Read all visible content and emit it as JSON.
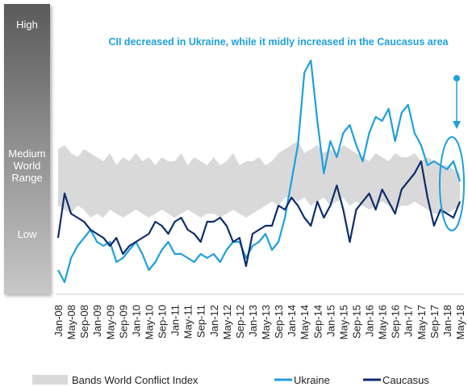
{
  "chart_data": {
    "type": "line",
    "annotation": "CII decreased in Ukraine, while it midly increased in the Caucasus area",
    "scale_labels": [
      "High",
      "Medium World Range",
      "Low"
    ],
    "categories": [
      "Jan-08",
      null,
      "May-08",
      null,
      "Sep-08",
      null,
      "Jan-09",
      null,
      "May-09",
      null,
      "Sep-09",
      null,
      "Jan-10",
      null,
      "May-10",
      null,
      "Sep-10",
      null,
      "Jan-11",
      null,
      "May-11",
      null,
      "Sep-11",
      null,
      "Jan-12",
      null,
      "May-12",
      null,
      "Sep-12",
      null,
      "Jan-13",
      null,
      "May-13",
      null,
      "Sep-13",
      null,
      "Jan-14",
      null,
      "May-14",
      null,
      "Sep-14",
      null,
      "Jan-15",
      null,
      "May-15",
      null,
      "Sep-15",
      null,
      "Jan-16",
      null,
      "May-16",
      null,
      "Sep-16",
      null,
      "Jan-17",
      null,
      "May-17",
      null,
      "Sep-17",
      null,
      "Jan-18",
      null,
      "May-18"
    ],
    "band": {
      "name": "Bands World Conflict Index",
      "color": "#d9d9d9",
      "upper": [
        180,
        185,
        175,
        170,
        180,
        175,
        170,
        165,
        175,
        160,
        170,
        165,
        175,
        165,
        170,
        160,
        170,
        165,
        165,
        175,
        160,
        170,
        165,
        160,
        170,
        160,
        165,
        175,
        160,
        165,
        165,
        170,
        160,
        165,
        175,
        180,
        185,
        190,
        175,
        180,
        185,
        175,
        180,
        175,
        185,
        180,
        175,
        170,
        165,
        175,
        170,
        165,
        175,
        170,
        170,
        175,
        165,
        170,
        165,
        160,
        160,
        155,
        150
      ],
      "lower": [
        110,
        105,
        100,
        110,
        105,
        95,
        100,
        95,
        105,
        100,
        95,
        100,
        105,
        100,
        95,
        100,
        105,
        100,
        95,
        100,
        105,
        100,
        95,
        100,
        100,
        95,
        100,
        105,
        100,
        95,
        100,
        105,
        110,
        115,
        110,
        120,
        120,
        115,
        120,
        110,
        115,
        120,
        110,
        115,
        120,
        110,
        115,
        110,
        105,
        110,
        115,
        110,
        105,
        110,
        110,
        115,
        110,
        105,
        100,
        100,
        100,
        105,
        110
      ]
    },
    "series": [
      {
        "name": "Ukraine",
        "color": "#1ea0dc",
        "values": [
          30,
          15,
          45,
          60,
          70,
          80,
          65,
          60,
          65,
          40,
          45,
          55,
          65,
          50,
          30,
          40,
          55,
          65,
          50,
          50,
          45,
          40,
          50,
          45,
          50,
          40,
          55,
          65,
          65,
          45,
          60,
          65,
          75,
          55,
          65,
          95,
          140,
          185,
          275,
          290,
          215,
          150,
          190,
          170,
          200,
          210,
          185,
          165,
          200,
          220,
          215,
          230,
          190,
          225,
          235,
          200,
          185,
          160,
          165,
          160,
          155,
          165,
          140
        ]
      },
      {
        "name": "Caucasus",
        "color": "#0d2d6c",
        "values": [
          70,
          125,
          100,
          95,
          90,
          80,
          75,
          70,
          60,
          70,
          50,
          60,
          65,
          70,
          75,
          90,
          85,
          75,
          90,
          95,
          80,
          75,
          65,
          90,
          90,
          95,
          85,
          65,
          70,
          35,
          75,
          80,
          85,
          85,
          110,
          105,
          120,
          110,
          95,
          85,
          115,
          95,
          110,
          135,
          105,
          65,
          105,
          115,
          125,
          105,
          130,
          115,
          100,
          130,
          140,
          150,
          165,
          120,
          85,
          105,
          100,
          95,
          115
        ]
      }
    ],
    "ylim": [
      0,
      355
    ]
  }
}
